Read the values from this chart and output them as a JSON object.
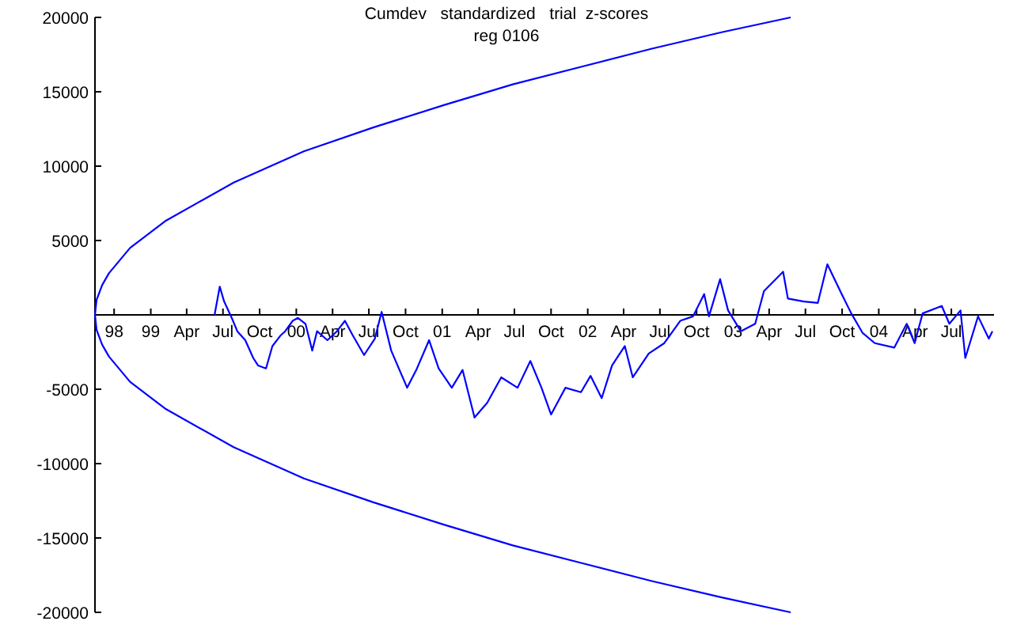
{
  "chart_data": {
    "type": "line",
    "title": "Cumdev   standardized   trial  z-scores",
    "subtitle": "reg 0106",
    "xlim": [
      "1998-08-14",
      "2004-10-16"
    ],
    "ylim": [
      -20000,
      20000
    ],
    "xticks": [
      {
        "value": "1998-10-01",
        "label": "98"
      },
      {
        "value": "1999-01-01",
        "label": "99"
      },
      {
        "value": "1999-04-01",
        "label": "Apr"
      },
      {
        "value": "1999-07-01",
        "label": "Jul"
      },
      {
        "value": "1999-10-01",
        "label": "Oct"
      },
      {
        "value": "2000-01-01",
        "label": "00"
      },
      {
        "value": "2000-04-01",
        "label": "Apr"
      },
      {
        "value": "2000-07-01",
        "label": "Jul"
      },
      {
        "value": "2000-10-01",
        "label": "Oct"
      },
      {
        "value": "2001-01-01",
        "label": "01"
      },
      {
        "value": "2001-04-01",
        "label": "Apr"
      },
      {
        "value": "2001-07-01",
        "label": "Jul"
      },
      {
        "value": "2001-10-01",
        "label": "Oct"
      },
      {
        "value": "2002-01-01",
        "label": "02"
      },
      {
        "value": "2002-04-01",
        "label": "Apr"
      },
      {
        "value": "2002-07-01",
        "label": "Jul"
      },
      {
        "value": "2002-10-01",
        "label": "Oct"
      },
      {
        "value": "2003-01-01",
        "label": "03"
      },
      {
        "value": "2003-04-01",
        "label": "Apr"
      },
      {
        "value": "2003-07-01",
        "label": "Jul"
      },
      {
        "value": "2003-10-01",
        "label": "Oct"
      },
      {
        "value": "2004-01-01",
        "label": "04"
      },
      {
        "value": "2004-04-01",
        "label": "Apr"
      },
      {
        "value": "2004-07-01",
        "label": "Jul"
      }
    ],
    "yticks": [
      -20000,
      -15000,
      -10000,
      -5000,
      5000,
      10000,
      15000,
      20000
    ],
    "grid": false,
    "marker": "none",
    "line_style": "solid",
    "series": [
      {
        "color": "#0000ff",
        "x": [
          "2003-05-25",
          "2002-12-03",
          "2002-06-11",
          "2001-12-19",
          "2001-06-27",
          "2001-01-05",
          "2000-07-12",
          "2000-01-20",
          "1999-07-28",
          "1999-02-06",
          "1998-11-10",
          "1998-09-18",
          "1998-09-01",
          "1998-08-18",
          "1998-08-14",
          "1998-08-18",
          "1998-09-01",
          "1998-09-18",
          "1998-11-10",
          "1999-02-06",
          "1999-07-28",
          "2000-01-20",
          "2000-07-12",
          "2001-01-05",
          "2001-06-27",
          "2001-12-19",
          "2002-06-11",
          "2002-12-03",
          "2003-05-25"
        ],
        "values": [
          -20000,
          -19000,
          -17900,
          -16700,
          -15500,
          -14100,
          -12600,
          -11000,
          -8900,
          -6300,
          -4500,
          -2800,
          -2000,
          -1000,
          0,
          1000,
          2000,
          2800,
          4500,
          6300,
          8900,
          11000,
          12600,
          14100,
          15500,
          16700,
          17900,
          19000,
          20000
        ]
      },
      {
        "color": "#0000ff",
        "x": [
          "1999-06-10",
          "1999-06-23",
          "1999-07-04",
          "1999-07-23",
          "1999-08-06",
          "1999-08-26",
          "1999-09-15",
          "1999-09-27",
          "1999-10-17",
          "1999-11-02",
          "1999-11-22",
          "1999-12-04",
          "1999-12-23",
          "2000-01-05",
          "2000-01-24",
          "2000-02-10",
          "2000-02-22",
          "2000-03-19",
          "2000-04-12",
          "2000-05-02",
          "2000-05-22",
          "2000-06-19",
          "2000-07-16",
          "2000-08-02",
          "2000-08-26",
          "2000-10-05",
          "2000-10-28",
          "2000-11-29",
          "2000-12-23",
          "2001-01-25",
          "2001-02-21",
          "2001-03-23",
          "2001-04-24",
          "2001-05-29",
          "2001-07-09",
          "2001-08-10",
          "2001-09-07",
          "2001-10-01",
          "2001-11-06",
          "2001-12-15",
          "2002-01-08",
          "2002-02-05",
          "2002-03-03",
          "2002-04-04",
          "2002-04-24",
          "2002-06-03",
          "2002-07-12",
          "2002-08-21",
          "2002-09-22",
          "2002-10-20",
          "2002-11-01",
          "2002-11-29",
          "2002-12-19",
          "2003-01-20",
          "2003-02-25",
          "2003-03-19",
          "2003-05-06",
          "2003-05-18",
          "2003-06-27",
          "2003-08-01",
          "2003-08-25",
          "2003-09-30",
          "2003-10-24",
          "2003-11-21",
          "2003-12-22",
          "2004-02-09",
          "2004-03-11",
          "2004-03-31",
          "2004-04-20",
          "2004-06-07",
          "2004-06-26",
          "2004-07-24",
          "2004-08-05",
          "2004-09-06",
          "2004-10-03",
          "2004-10-12"
        ],
        "values": [
          0,
          1900,
          900,
          -200,
          -1100,
          -1700,
          -2900,
          -3400,
          -3600,
          -2100,
          -1400,
          -1100,
          -400,
          -200,
          -600,
          -2400,
          -1100,
          -1700,
          -1100,
          -400,
          -1400,
          -2700,
          -1600,
          200,
          -2400,
          -4900,
          -3700,
          -1700,
          -3600,
          -4900,
          -3700,
          -6900,
          -5900,
          -4200,
          -4900,
          -3100,
          -4900,
          -6700,
          -4900,
          -5200,
          -4100,
          -5600,
          -3400,
          -2100,
          -4200,
          -2600,
          -1900,
          -400,
          -100,
          1400,
          -100,
          2400,
          300,
          -1100,
          -600,
          1600,
          2900,
          1100,
          900,
          800,
          3400,
          1400,
          100,
          -1200,
          -1900,
          -2200,
          -600,
          -1900,
          100,
          600,
          -600,
          300,
          -2900,
          -100,
          -1600,
          -1100
        ]
      }
    ]
  }
}
